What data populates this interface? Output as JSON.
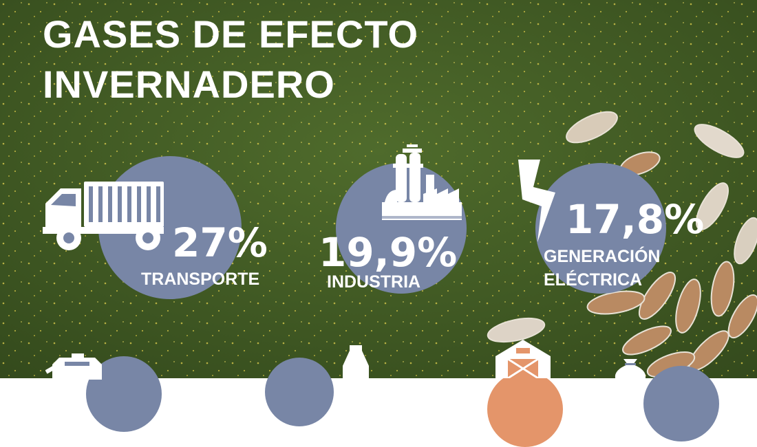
{
  "title": {
    "line1": "GASES DE EFECTO",
    "line2": "INVERNADERO"
  },
  "colors": {
    "circle": "#7886a6",
    "text": "#ffffff",
    "grass": "#3f5a24"
  },
  "stats": [
    {
      "value": "27%",
      "label": "TRANSPORTE",
      "icon": "truck-icon"
    },
    {
      "value": "19,9%",
      "label": "INDUSTRIA",
      "icon": "factory-icon"
    },
    {
      "value": "17,8%",
      "label_line1": "GENERACIÓN",
      "label_line2": "ELÉCTRICA",
      "icon": "lightning-icon"
    }
  ],
  "bottom_icons": [
    "fuel-can-icon",
    "milk-bottle-icon",
    "barn-icon",
    "money-bag-icon"
  ]
}
